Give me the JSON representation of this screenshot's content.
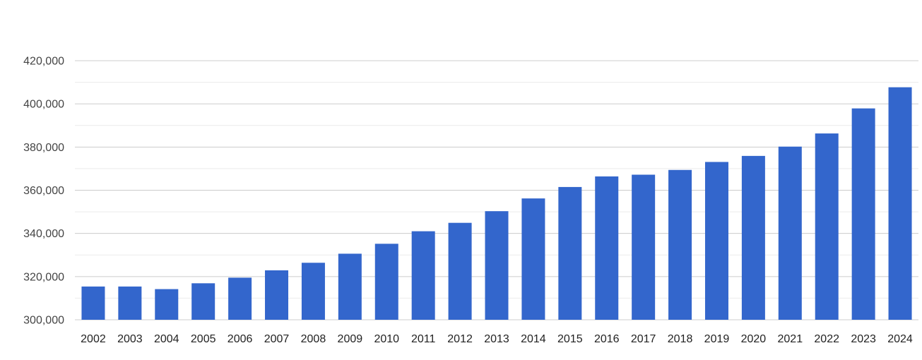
{
  "chart_data": {
    "type": "bar",
    "title": "",
    "xlabel": "",
    "ylabel": "",
    "legend": "none",
    "grid": true,
    "background_color": "#ffffff",
    "bar_color": "#3366cc",
    "major_grid_color": "#cccccc",
    "minor_grid_color": "#ebebeb",
    "y_axis_label_color": "#444444",
    "x_axis_label_color": "#222222",
    "ylim": [
      300000,
      420000
    ],
    "y_minor_step": 10000,
    "y_major_ticks": [
      300000,
      320000,
      340000,
      360000,
      380000,
      400000,
      420000
    ],
    "y_tick_labels": [
      "300,000",
      "320,000",
      "340,000",
      "360,000",
      "380,000",
      "400,000",
      "420,000"
    ],
    "categories": [
      "2002",
      "2003",
      "2004",
      "2005",
      "2006",
      "2007",
      "2008",
      "2009",
      "2010",
      "2011",
      "2012",
      "2013",
      "2014",
      "2015",
      "2016",
      "2017",
      "2018",
      "2019",
      "2020",
      "2021",
      "2022",
      "2023",
      "2024"
    ],
    "values": [
      315400,
      315400,
      314200,
      316900,
      319500,
      322900,
      326400,
      330600,
      335200,
      341000,
      344900,
      350300,
      356200,
      361500,
      366400,
      367200,
      369400,
      373100,
      375900,
      380200,
      386300,
      397900,
      407700
    ]
  }
}
